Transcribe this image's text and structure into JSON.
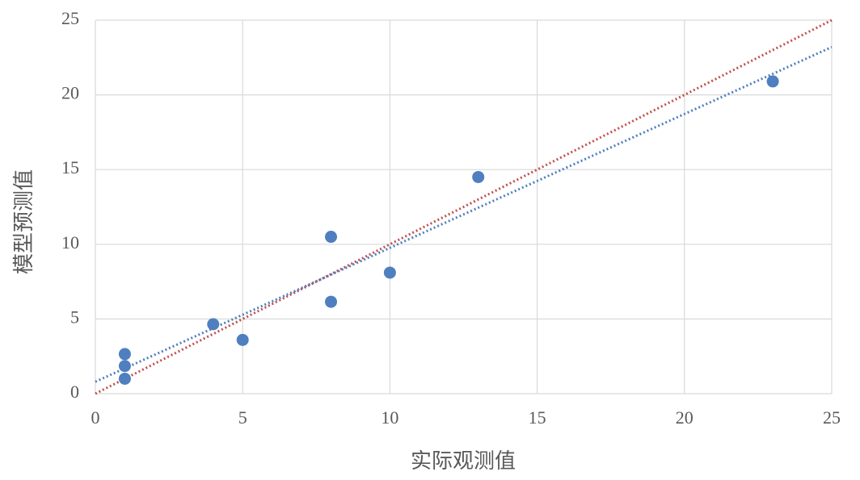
{
  "chart_data": {
    "type": "scatter",
    "x_label": "实际观测值",
    "y_label": "模型预测值",
    "series": [
      {
        "color": "#4f7fbf",
        "x": [
          1,
          1,
          1,
          4,
          5,
          8,
          8,
          10,
          13,
          23
        ],
        "values": [
          1,
          1.85,
          2.65,
          4.65,
          3.6,
          6.15,
          10.5,
          8.1,
          14.5,
          20.9
        ]
      }
    ],
    "lines": [
      {
        "color": "#c0504d",
        "x": [
          0,
          25
        ],
        "values": [
          0,
          25
        ]
      },
      {
        "color": "#4f7fbf",
        "x": [
          0,
          25
        ],
        "values": [
          0.8,
          23.2
        ]
      }
    ],
    "xlim": [
      0,
      25
    ],
    "ylim": [
      0,
      25
    ],
    "xticks": [
      0,
      5,
      10,
      15,
      20,
      25
    ],
    "yticks": [
      0,
      5,
      10,
      15,
      20,
      25
    ],
    "grid": true
  }
}
